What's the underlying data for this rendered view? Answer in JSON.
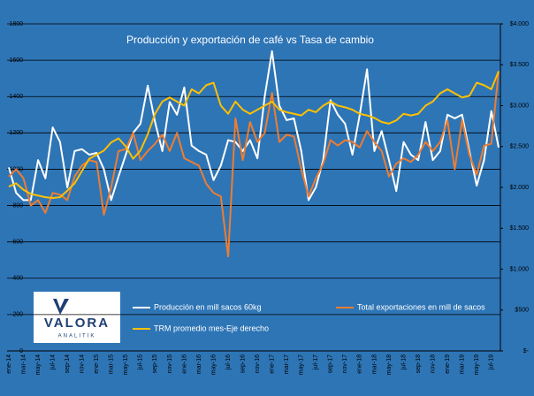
{
  "chart_data": {
    "type": "line",
    "title": "Producción y exportación de café vs Tasa de cambio",
    "logo": {
      "name": "VALORA",
      "tagline": "ANALITIK"
    },
    "categories": [
      "ene-14",
      null,
      "mar-14",
      null,
      "may-14",
      null,
      "jul-14",
      null,
      "sep-14",
      null,
      "nov-14",
      null,
      "ene-15",
      null,
      "mar-15",
      null,
      "may-15",
      null,
      "jul-15",
      null,
      "sep-15",
      null,
      "nov-15",
      null,
      "ene-16",
      null,
      "mar-16",
      null,
      "may-16",
      null,
      "jul-16",
      null,
      "sep-16",
      null,
      "nov-16",
      null,
      "ene-17",
      null,
      "mar-17",
      null,
      "may-17",
      null,
      "jul-17",
      null,
      "sep-17",
      null,
      "nov-17",
      null,
      "ene-18",
      null,
      "mar-18",
      null,
      "may-18",
      null,
      "jul-18",
      null,
      "sep-18",
      null,
      "nov-18",
      null,
      "ene-19",
      null,
      "mar-19",
      null,
      "may-19",
      null,
      "jul-19",
      null
    ],
    "series": [
      {
        "name": "Producción en mill sacos 60kg",
        "color": "#ffffff",
        "axis": "y",
        "values": [
          1010,
          870,
          830,
          830,
          1050,
          950,
          1230,
          1150,
          900,
          1100,
          1110,
          1080,
          1090,
          1000,
          830,
          960,
          1080,
          1200,
          1250,
          1460,
          1260,
          1100,
          1370,
          1300,
          1450,
          1130,
          1100,
          1080,
          940,
          1020,
          1160,
          1150,
          1100,
          1160,
          1060,
          1400,
          1650,
          1350,
          1270,
          1280,
          1100,
          830,
          900,
          1050,
          1380,
          1300,
          1250,
          1080,
          1300,
          1550,
          1100,
          1210,
          1050,
          880,
          1150,
          1080,
          1050,
          1260,
          1050,
          1100,
          1300,
          1280,
          1300,
          1100,
          910,
          1050,
          1320,
          1120
        ]
      },
      {
        "name": "Total exportaciones en mill de sacos",
        "color": "#ed7d31",
        "axis": "y",
        "values": [
          960,
          1000,
          950,
          800,
          830,
          760,
          870,
          860,
          830,
          960,
          1020,
          1050,
          1040,
          750,
          900,
          1100,
          1110,
          1200,
          1050,
          1100,
          1140,
          1190,
          1100,
          1200,
          1060,
          1040,
          1020,
          920,
          870,
          850,
          520,
          1280,
          1050,
          1260,
          1150,
          1200,
          1420,
          1150,
          1190,
          1180,
          1000,
          850,
          950,
          1030,
          1160,
          1130,
          1160,
          1150,
          1120,
          1210,
          1150,
          1100,
          960,
          1030,
          1060,
          1040,
          1080,
          1150,
          1100,
          1150,
          1270,
          1000,
          1270,
          1080,
          970,
          1130,
          1140,
          1540
        ]
      },
      {
        "name": "TRM promedio mes-Eje derecho",
        "color": "#ffc000",
        "axis": "y2",
        "values": [
          2010,
          2050,
          1970,
          1920,
          1900,
          1880,
          1870,
          1880,
          1960,
          2050,
          2200,
          2350,
          2400,
          2450,
          2550,
          2600,
          2500,
          2350,
          2450,
          2650,
          2900,
          3050,
          3100,
          3050,
          3000,
          3200,
          3150,
          3250,
          3280,
          3000,
          2900,
          3050,
          2950,
          2900,
          2950,
          3000,
          3050,
          2950,
          2920,
          2900,
          2880,
          2950,
          2920,
          3000,
          3050,
          3000,
          2980,
          2950,
          2900,
          2880,
          2850,
          2800,
          2780,
          2820,
          2900,
          2880,
          2900,
          3000,
          3050,
          3150,
          3200,
          3150,
          3100,
          3120,
          3280,
          3250,
          3200,
          3420
        ]
      }
    ],
    "ylim": [
      0,
      1800
    ],
    "yticks": [
      0,
      200,
      400,
      600,
      800,
      1000,
      1200,
      1400,
      1600,
      1800
    ],
    "y2lim": [
      0,
      4000
    ],
    "y2ticks": [
      {
        "value": 0,
        "label": "$-"
      },
      {
        "value": 500,
        "label": "$500"
      },
      {
        "value": 1000,
        "label": "$1.000"
      },
      {
        "value": 1500,
        "label": "$1.500"
      },
      {
        "value": 2000,
        "label": "$2.000"
      },
      {
        "value": 2500,
        "label": "$2.500"
      },
      {
        "value": 3000,
        "label": "$3.000"
      },
      {
        "value": 3500,
        "label": "$3.500"
      },
      {
        "value": 4000,
        "label": "$4.000"
      }
    ],
    "grid": true
  }
}
